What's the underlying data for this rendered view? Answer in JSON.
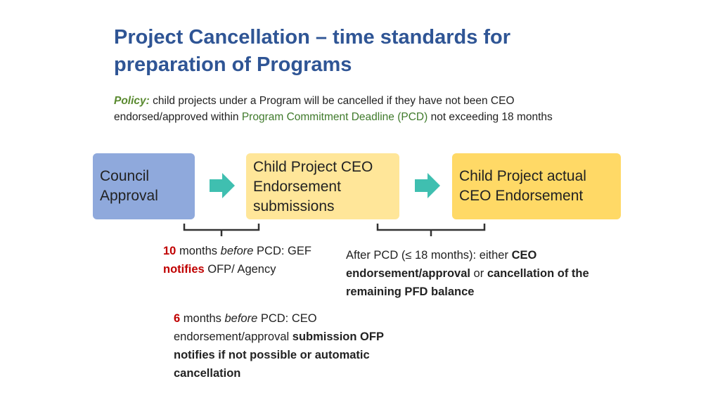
{
  "title": "Project Cancellation – time standards for preparation of Programs",
  "policy": {
    "label": "Policy:",
    "text_before": " child projects under a Program will be cancelled if they have not been CEO endorsed/approved within ",
    "pcd": "Program Commitment Deadline (PCD)",
    "text_after": " not exceeding 18 months"
  },
  "flow": {
    "step1": "Council Approval",
    "step2": "Child Project CEO Endorsement submissions",
    "step3": "Child Project actual CEO Endorsement"
  },
  "note_10": {
    "num": "10",
    "t1": " months ",
    "before": "before",
    "t2": " PCD: GEF ",
    "notifies": "notifies",
    "t3": " OFP/ Agency"
  },
  "note_after": {
    "t1": "After PCD (≤ 18 months): either ",
    "b1": "CEO endorsement/approval",
    "t2": " or ",
    "b2": "cancellation of the remaining PFD balance"
  },
  "note_6": {
    "num": "6",
    "t1": " months ",
    "before": "before",
    "t2": " PCD: CEO endorsement/approval ",
    "b1": "submission OFP notifies if not possible or automatic cancellation"
  },
  "colors": {
    "title": "#2f5595",
    "council": "#8fa9dc",
    "submission": "#ffe699",
    "actual": "#ffd966",
    "arrow": "#3fbfb0",
    "highlight": "#c00000"
  }
}
